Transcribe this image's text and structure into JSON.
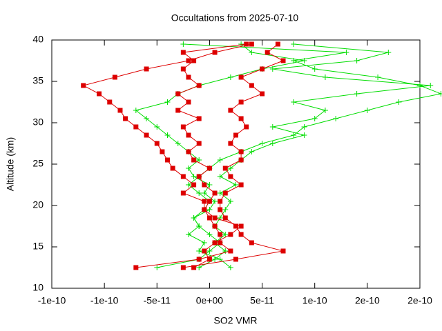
{
  "chart_data": {
    "type": "profile",
    "title": "Occultations from 2025-07-10",
    "x_label": "SO2 VMR",
    "y_label": "Altitude (km)",
    "xlim": [
      -1.5e-10,
      2e-10
    ],
    "xticks": [
      {
        "value": -1.5e-10,
        "label": "-1e-10"
      },
      -1e-10,
      -5e-11,
      {
        "value": 0,
        "label": "0e+00"
      },
      5e-11,
      1e-10,
      {
        "value": 1.5e-10,
        "label": "2e-10"
      },
      2e-10
    ],
    "ylim": [
      10,
      40
    ],
    "yticks": [
      10,
      15,
      20,
      25,
      30,
      35,
      40
    ],
    "grid": false,
    "y": [
      12.5,
      13.5,
      14.5,
      15.5,
      16.5,
      17.5,
      18.5,
      19.5,
      20.5,
      21.5,
      22.5,
      23.5,
      24.5,
      25.5,
      26.5,
      27.5,
      28.5,
      29.5,
      30.5,
      31.5,
      32.5,
      33.5,
      34.5,
      35.5,
      36.5,
      37.5,
      38.5,
      39.5
    ],
    "series": [
      {
        "color": "#00dd00",
        "marker": "plus",
        "values": [
          -5e-11,
          -1e-11,
          0,
          1e-11,
          0,
          -1e-11,
          -1.5e-11,
          -5e-12,
          0,
          -1e-11,
          -2e-11,
          -1e-11,
          0,
          1e-11,
          3e-11,
          5e-11,
          8e-11,
          9e-11,
          1.2e-10,
          1.5e-10,
          1.8e-10,
          2.2e-10,
          2e-10,
          1.6e-10,
          1e-10,
          8e-11,
          1.3e-10,
          -2.5e-11
        ]
      },
      {
        "color": "#00dd00",
        "marker": "plus",
        "values": [
          2e-11,
          1e-11,
          -1e-11,
          -5e-12,
          -2e-11,
          -1e-11,
          -1.5e-11,
          0,
          5e-12,
          -5e-12,
          0,
          -1.5e-11,
          -2e-11,
          -1e-11,
          -2e-11,
          -3e-11,
          -4e-11,
          -5e-11,
          -6e-11,
          -7e-11,
          -4e-11,
          -3e-11,
          -1e-11,
          2e-11,
          5e-11,
          9e-11,
          4e-11,
          3e-11
        ]
      },
      {
        "color": "#00dd00",
        "marker": "plus",
        "values": [
          -1e-11,
          5e-12,
          1.5e-11,
          5e-12,
          1.5e-11,
          5e-12,
          1e-11,
          1.5e-11,
          2e-11,
          1e-11,
          2.5e-11,
          1e-11,
          2e-11,
          3e-11,
          4e-11,
          6e-11,
          9e-11,
          6e-11,
          1e-10,
          1.1e-10,
          8e-11,
          1.4e-10,
          2.1e-10,
          1.1e-10,
          6e-11,
          1.4e-10,
          1.7e-10,
          8e-11
        ]
      },
      {
        "color": "#dd0000",
        "marker": "square",
        "values": [
          -7e-11,
          -1e-11,
          2e-11,
          1e-11,
          1e-11,
          5e-12,
          0,
          -5e-12,
          -5e-12,
          -2.5e-11,
          -1.5e-11,
          -2.5e-11,
          -3.5e-11,
          -4e-11,
          -4.5e-11,
          -5e-11,
          -6e-11,
          -7e-11,
          -8e-11,
          -8.5e-11,
          -9.5e-11,
          -1.05e-10,
          -1.2e-10,
          -9e-11,
          -6e-11,
          -2e-11,
          5e-12,
          4e-11
        ]
      },
      {
        "color": "#dd0000",
        "marker": "square",
        "values": [
          -2.5e-11,
          2.5e-11,
          7e-11,
          4e-11,
          3e-11,
          2.5e-11,
          1.5e-11,
          1e-11,
          1e-11,
          1.5e-11,
          3e-11,
          2e-11,
          1.5e-11,
          3e-11,
          3e-11,
          2e-11,
          2.5e-11,
          3.5e-11,
          3e-11,
          2e-11,
          3e-11,
          5e-11,
          4e-11,
          3e-11,
          5e-11,
          7e-11,
          5.5e-11,
          6.5e-11
        ]
      },
      {
        "color": "#dd0000",
        "marker": "square",
        "values": [
          -1.5e-11,
          0,
          -5e-12,
          5e-12,
          2e-11,
          3e-11,
          5e-12,
          -5e-12,
          0,
          5e-12,
          -5e-12,
          -1e-11,
          0,
          -1.5e-11,
          -2e-11,
          -1e-11,
          -2e-11,
          -2.5e-11,
          -1e-11,
          -3e-11,
          -2e-11,
          -3e-11,
          -1e-11,
          -2e-11,
          -2.5e-11,
          -1.5e-11,
          -2.5e-11,
          3.5e-11
        ]
      }
    ]
  }
}
